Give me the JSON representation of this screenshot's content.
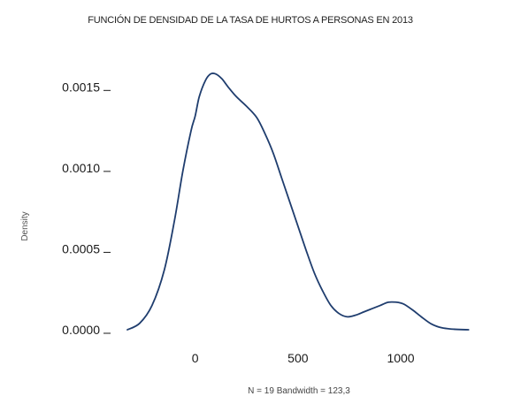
{
  "chart_data": {
    "type": "line",
    "title": "FUNCIÓN DE DENSIDAD DE LA TASA DE HURTOS A PERSONAS EN 2013",
    "xlabel": "N = 19  Bandwidth = 123,3",
    "ylabel": "Density",
    "xlim": [
      -360,
      1370
    ],
    "ylim": [
      0,
      0.0016
    ],
    "x_ticks": [
      0,
      500,
      1000
    ],
    "x_tick_labels": [
      "0",
      "500",
      "1000"
    ],
    "y_ticks": [
      0,
      0.0005,
      0.001,
      0.0015
    ],
    "y_tick_labels": [
      "0.0000",
      "0.0005",
      "0.0010",
      "0.0015"
    ],
    "grid": false,
    "line_color": "#1f3d6e",
    "series": [
      {
        "x": [
          -330,
          -270,
          -210,
          -150,
          -100,
          -60,
          -20,
          0,
          20,
          50,
          75,
          100,
          130,
          160,
          200,
          250,
          300,
          340,
          380,
          420,
          460,
          500,
          540,
          580,
          620,
          660,
          700,
          740,
          780,
          820,
          860,
          900,
          940,
          980,
          1000,
          1020,
          1060,
          1100,
          1150,
          1200,
          1260,
          1330
        ],
        "y": [
          0.0,
          4e-05,
          0.00015,
          0.00037,
          0.00068,
          0.00098,
          0.00123,
          0.00132,
          0.00144,
          0.00154,
          0.00158,
          0.00158,
          0.00155,
          0.0015,
          0.00144,
          0.00138,
          0.00131,
          0.00121,
          0.00109,
          0.00094,
          0.00079,
          0.00064,
          0.00049,
          0.00035,
          0.00024,
          0.00015,
          0.0001,
          8e-05,
          9e-05,
          0.00011,
          0.00013,
          0.00015,
          0.00017,
          0.00017,
          0.000165,
          0.000155,
          0.00012,
          8e-05,
          3.5e-05,
          1.2e-05,
          3e-06,
          0.0
        ]
      }
    ]
  }
}
